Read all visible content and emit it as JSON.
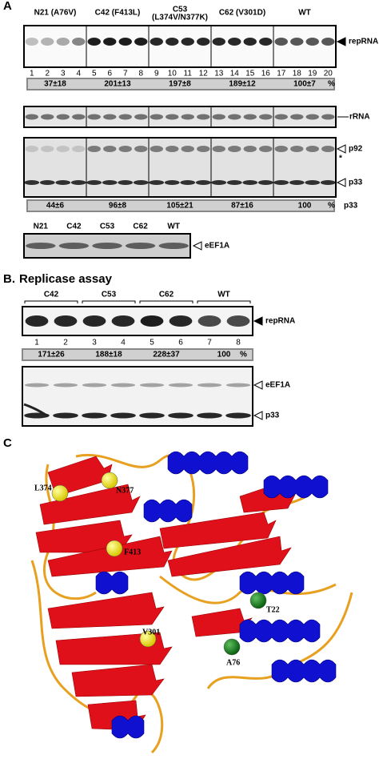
{
  "panel_a": {
    "label": "A",
    "groups": [
      "N21 (A76V)",
      "C42 (F413L)",
      "C53",
      "C62 (V301D)",
      "WT"
    ],
    "c53_mutations": "(L374V/N377K)",
    "lanes": [
      1,
      2,
      3,
      4,
      5,
      6,
      7,
      8,
      9,
      10,
      11,
      12,
      13,
      14,
      15,
      16,
      17,
      18,
      19,
      20
    ],
    "rna_quant": [
      "37±18",
      "201±13",
      "197±8",
      "189±12",
      "100±7"
    ],
    "rna_quant_unit": "%",
    "rna_label": "repRNA",
    "rrna_label": "rRNA",
    "protein_labels": [
      "p92",
      "*",
      "p33"
    ],
    "protein_quant": [
      "44±6",
      "96±8",
      "105±21",
      "87±16",
      "100"
    ],
    "protein_quant_unit": "%",
    "protein_quant_label": "p33",
    "blot_groups": [
      "N21",
      "C42",
      "C53",
      "C62",
      "WT"
    ],
    "blot_label": "eEF1A"
  },
  "panel_b": {
    "label": "B.",
    "title": "Replicase assay",
    "groups": [
      "C42",
      "C53",
      "C62",
      "WT"
    ],
    "lanes": [
      1,
      2,
      3,
      4,
      5,
      6,
      7,
      8
    ],
    "rna_label": "repRNA",
    "quant": [
      "171±26",
      "188±18",
      "228±37",
      "100"
    ],
    "quant_unit": "%",
    "blot_labels": [
      "eEF1A",
      "p33"
    ]
  },
  "panel_c": {
    "label": "C",
    "residues": [
      "L374",
      "N377",
      "F413",
      "V301",
      "T22",
      "A76"
    ]
  }
}
